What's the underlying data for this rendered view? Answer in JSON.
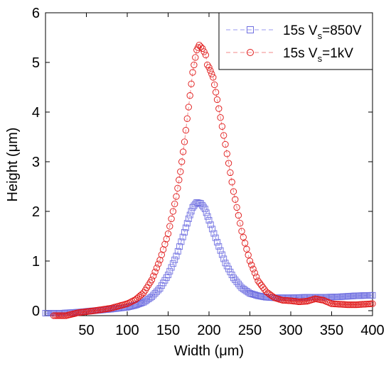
{
  "chart_data": {
    "type": "scatter",
    "title": "",
    "xlabel": "Width (μm)",
    "ylabel": "Height (μm)",
    "xlim": [
      0,
      400
    ],
    "ylim": [
      -0.1,
      6
    ],
    "xticks": [
      50,
      100,
      150,
      200,
      250,
      300,
      350,
      400
    ],
    "yticks": [
      0,
      1,
      2,
      3,
      4,
      5,
      6
    ],
    "grid": false,
    "legend_position": "top-right",
    "series": [
      {
        "name": "15s V_s=850V",
        "legend_main": "15s V",
        "legend_sub": "s",
        "legend_tail": "=850V",
        "marker": "square",
        "color": "#6f6fe0",
        "line_color": "#9a9af0",
        "points": [
          [
            0,
            -0.05
          ],
          [
            20,
            -0.05
          ],
          [
            40,
            -0.03
          ],
          [
            60,
            0.0
          ],
          [
            80,
            0.03
          ],
          [
            100,
            0.07
          ],
          [
            110,
            0.11
          ],
          [
            120,
            0.17
          ],
          [
            130,
            0.28
          ],
          [
            140,
            0.45
          ],
          [
            150,
            0.72
          ],
          [
            160,
            1.1
          ],
          [
            170,
            1.58
          ],
          [
            175,
            1.85
          ],
          [
            180,
            2.08
          ],
          [
            185,
            2.18
          ],
          [
            190,
            2.16
          ],
          [
            195,
            2.05
          ],
          [
            200,
            1.82
          ],
          [
            210,
            1.38
          ],
          [
            220,
            0.96
          ],
          [
            230,
            0.66
          ],
          [
            240,
            0.46
          ],
          [
            250,
            0.35
          ],
          [
            260,
            0.3
          ],
          [
            270,
            0.27
          ],
          [
            280,
            0.26
          ],
          [
            300,
            0.26
          ],
          [
            320,
            0.27
          ],
          [
            340,
            0.27
          ],
          [
            360,
            0.28
          ],
          [
            380,
            0.3
          ],
          [
            400,
            0.31
          ]
        ]
      },
      {
        "name": "15s V_s=1kV",
        "legend_main": "15s V",
        "legend_sub": "s",
        "legend_tail": "=1kV",
        "marker": "circle",
        "color": "#e01818",
        "line_color": "#f08a8a",
        "points": [
          [
            10,
            -0.1
          ],
          [
            25,
            -0.1
          ],
          [
            40,
            -0.04
          ],
          [
            60,
            0.0
          ],
          [
            80,
            0.05
          ],
          [
            100,
            0.14
          ],
          [
            110,
            0.22
          ],
          [
            120,
            0.36
          ],
          [
            130,
            0.62
          ],
          [
            140,
            1.02
          ],
          [
            150,
            1.55
          ],
          [
            160,
            2.3
          ],
          [
            165,
            2.8
          ],
          [
            170,
            3.4
          ],
          [
            175,
            4.1
          ],
          [
            180,
            4.8
          ],
          [
            185,
            5.25
          ],
          [
            188,
            5.35
          ],
          [
            192,
            5.28
          ],
          [
            196,
            5.15
          ],
          [
            198,
            4.95
          ],
          [
            200,
            4.9
          ],
          [
            205,
            4.7
          ],
          [
            210,
            4.25
          ],
          [
            220,
            3.35
          ],
          [
            230,
            2.4
          ],
          [
            240,
            1.6
          ],
          [
            250,
            1.0
          ],
          [
            260,
            0.6
          ],
          [
            270,
            0.38
          ],
          [
            280,
            0.26
          ],
          [
            290,
            0.21
          ],
          [
            300,
            0.2
          ],
          [
            310,
            0.18
          ],
          [
            320,
            0.19
          ],
          [
            330,
            0.24
          ],
          [
            340,
            0.21
          ],
          [
            350,
            0.14
          ],
          [
            360,
            0.13
          ],
          [
            370,
            0.12
          ],
          [
            380,
            0.12
          ],
          [
            390,
            0.13
          ],
          [
            400,
            0.14
          ]
        ]
      }
    ]
  }
}
